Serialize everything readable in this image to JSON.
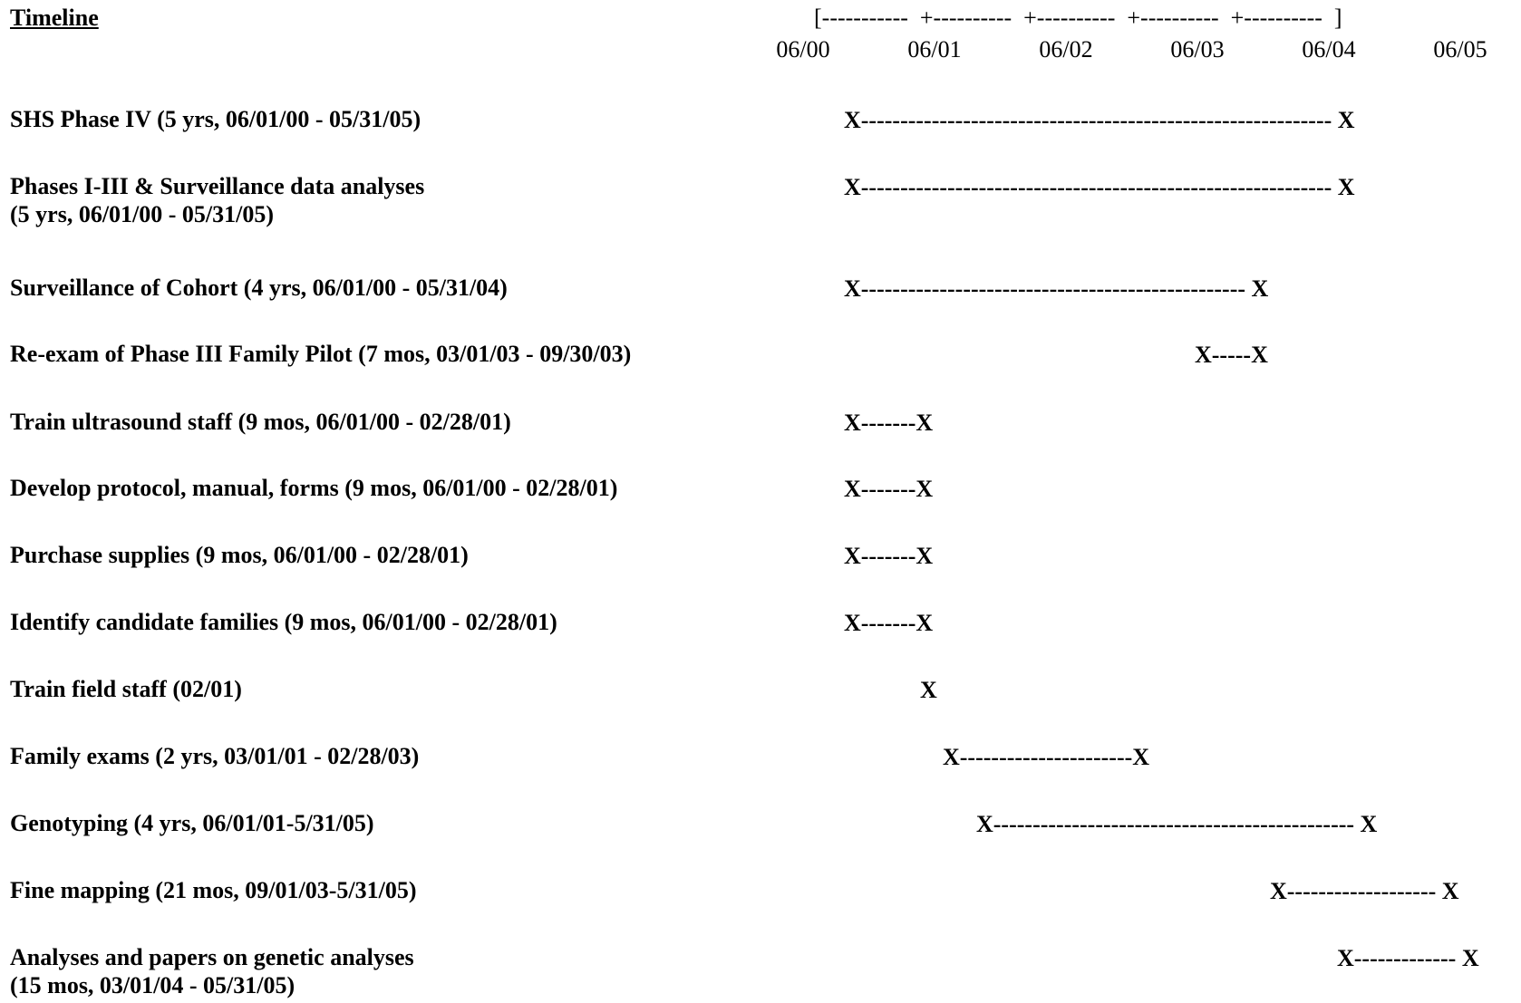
{
  "heading": "Timeline",
  "scale": {
    "axis_text": "[-----------  +----------  +----------  +----------  +----------  ]",
    "dates": [
      "06/00",
      "06/01",
      "06/02",
      "06/03",
      "06/04",
      "06/05"
    ]
  },
  "tasks": [
    {
      "label_lines": [
        "SHS Phase IV  (5 yrs, 06/01/00 - 05/31/05)"
      ],
      "bar": "X------------------------------------------------------------  X"
    },
    {
      "label_lines": [
        "Phases I-III & Surveillance data analyses",
        "(5 yrs, 06/01/00 - 05/31/05)"
      ],
      "bar": "X------------------------------------------------------------  X"
    },
    {
      "label_lines": [
        "Surveillance of Cohort  (4 yrs, 06/01/00 - 05/31/04)"
      ],
      "bar": "X-------------------------------------------------  X"
    },
    {
      "label_lines": [
        "Re-exam of Phase III Family Pilot (7 mos, 03/01/03 - 09/30/03)"
      ],
      "bar": "X-----X"
    },
    {
      "label_lines": [
        "Train ultrasound staff  (9 mos, 06/01/00 - 02/28/01)"
      ],
      "bar": "X-------X"
    },
    {
      "label_lines": [
        "Develop protocol, manual, forms  (9 mos, 06/01/00 - 02/28/01)"
      ],
      "bar": "X-------X"
    },
    {
      "label_lines": [
        "Purchase supplies  (9 mos, 06/01/00 - 02/28/01)"
      ],
      "bar": "X-------X"
    },
    {
      "label_lines": [
        "Identify candidate families  (9 mos, 06/01/00 - 02/28/01)"
      ],
      "bar": "X-------X"
    },
    {
      "label_lines": [
        "Train field staff   (02/01)"
      ],
      "bar": "X"
    },
    {
      "label_lines": [
        "Family exams  (2 yrs, 03/01/01 - 02/28/03)"
      ],
      "bar": "X----------------------X"
    },
    {
      "label_lines": [
        "Genotyping  (4 yrs, 06/01/01-5/31/05)"
      ],
      "bar": "X----------------------------------------------  X"
    },
    {
      "label_lines": [
        "Fine mapping (21 mos, 09/01/03-5/31/05)"
      ],
      "bar": "X-------------------  X"
    },
    {
      "label_lines": [
        "Analyses and papers on genetic analyses",
        "(15 mos, 03/01/04 - 05/31/05)"
      ],
      "bar": "X------------- X"
    }
  ]
}
